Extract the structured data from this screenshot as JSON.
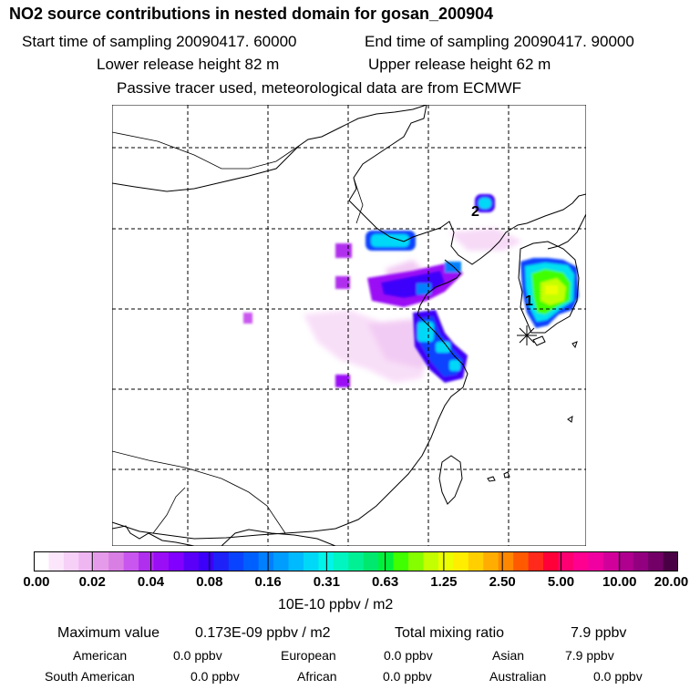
{
  "title": "NO2 source contributions in nested domain for gosan_200904",
  "start_time": "Start time of sampling 20090417. 60000",
  "end_time": "End time of sampling 20090417. 90000",
  "lower_release": "Lower release height   82 m",
  "upper_release": "Upper release height   62 m",
  "tracer_note": "Passive tracer used, meteorological data are from ECMWF",
  "map": {
    "labels": [
      "1",
      "2"
    ],
    "receptor_icon": "star-marker-icon"
  },
  "colorbar": {
    "ticks": [
      "0.00",
      "0.02",
      "0.04",
      "0.08",
      "0.16",
      "0.31",
      "0.63",
      "1.25",
      "2.50",
      "5.00",
      "10.00",
      "20.00"
    ],
    "colors": [
      "#ffffff",
      "#fbe6fb",
      "#f6d0f7",
      "#efb7f2",
      "#e59be9",
      "#d97fe4",
      "#c957ef",
      "#b02eed",
      "#9a0ef5",
      "#8200ff",
      "#5a00f8",
      "#3c00fa",
      "#1e22f8",
      "#0a43ff",
      "#0060ff",
      "#0080ff",
      "#009dff",
      "#00baff",
      "#00d8f8",
      "#00f4e8",
      "#00f5c0",
      "#00f096",
      "#00e86e",
      "#00f03c",
      "#40ff00",
      "#85ff00",
      "#c3ff00",
      "#ecff00",
      "#ffee00",
      "#ffcf00",
      "#ffad00",
      "#ff8800",
      "#ff5a00",
      "#ff2a1c",
      "#ff0038",
      "#ff0070",
      "#ff0090",
      "#f000a0",
      "#d2009a",
      "#b00090",
      "#920080",
      "#720066",
      "#4a0044"
    ],
    "unit": "10E-10 ppbv / m2"
  },
  "summary": {
    "max_label": "Maximum value",
    "max_value": "0.173E-09 ppbv / m2",
    "total_label": "Total mixing ratio",
    "total_value": "7.9 ppbv",
    "regions": [
      {
        "name": "American",
        "value": "0.0 ppbv"
      },
      {
        "name": "European",
        "value": "0.0 ppbv"
      },
      {
        "name": "Asian",
        "value": "7.9 ppbv"
      },
      {
        "name": "South American",
        "value": "0.0 ppbv"
      },
      {
        "name": "African",
        "value": "0.0 ppbv"
      },
      {
        "name": "Australian",
        "value": "0.0 ppbv"
      }
    ]
  }
}
